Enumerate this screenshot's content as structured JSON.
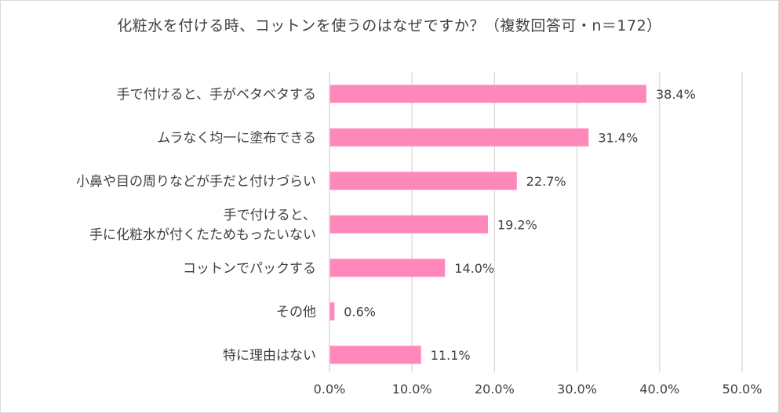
{
  "chart_data": {
    "type": "bar",
    "orientation": "horizontal",
    "title": "化粧水を付ける時、コットンを使うのはなぜですか？（複数回答可・n＝172）",
    "categories": [
      [
        "手で付けると、手がベタベタする"
      ],
      [
        "ムラなく均一に塗布できる"
      ],
      [
        "小鼻や目の周りなどが手だと付けづらい"
      ],
      [
        "手で付けると、",
        "手に化粧水が付くたためもったいない"
      ],
      [
        "コットンでパックする"
      ],
      [
        "その他"
      ],
      [
        "特に理由はない"
      ]
    ],
    "values": [
      38.4,
      31.4,
      22.7,
      19.2,
      14.0,
      0.6,
      11.1
    ],
    "value_labels": [
      "38.4%",
      "31.4%",
      "22.7%",
      "19.2%",
      "14.0%",
      "0.6%",
      "11.1%"
    ],
    "xlim": [
      0,
      50
    ],
    "xticks": [
      0,
      10,
      20,
      30,
      40,
      50
    ],
    "xtick_labels": [
      "0.0%",
      "10.0%",
      "20.0%",
      "30.0%",
      "40.0%",
      "50.0%"
    ],
    "grid": true,
    "bar_color": "#ff88bb",
    "grid_color": "#d9d9d9"
  }
}
